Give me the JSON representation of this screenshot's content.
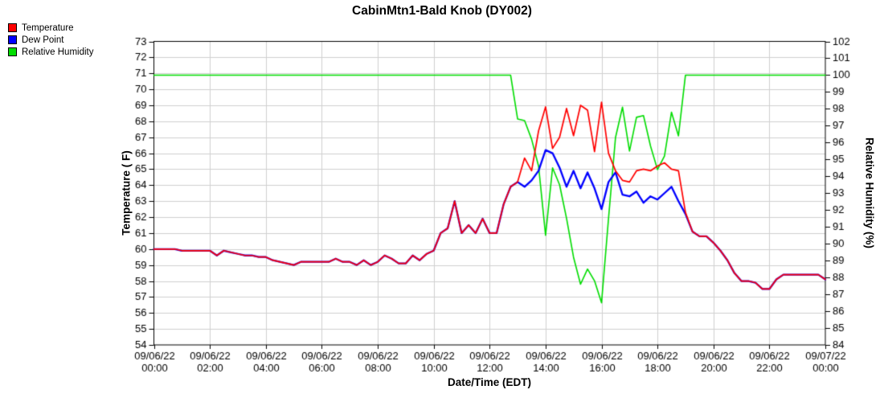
{
  "window": {
    "title": "CabinMtn1-Bald Knob (DY002)"
  },
  "legend": {
    "items": [
      {
        "label": "Temperature",
        "color": "#ff0000"
      },
      {
        "label": "Dew Point",
        "color": "#0000ff"
      },
      {
        "label": "Relative Humidity",
        "color": "#00dd00"
      }
    ]
  },
  "axes": {
    "left_title": "Temperature ( F)",
    "right_title": "Relative Humidity (%)",
    "x_title": "Date/Time (EDT)"
  },
  "chart_data": {
    "type": "line",
    "title": "CabinMtn1-Bald Knob (DY002)",
    "x_start_hour": 0,
    "x_step_hours": 0.25,
    "x_total_hours": 24,
    "x_tick_hours": [
      0,
      2,
      4,
      6,
      8,
      10,
      12,
      14,
      16,
      18,
      20,
      22,
      24
    ],
    "x_ticks": [
      {
        "date": "09/06/22",
        "time": "00:00"
      },
      {
        "date": "09/06/22",
        "time": "02:00"
      },
      {
        "date": "09/06/22",
        "time": "04:00"
      },
      {
        "date": "09/06/22",
        "time": "06:00"
      },
      {
        "date": "09/06/22",
        "time": "08:00"
      },
      {
        "date": "09/06/22",
        "time": "10:00"
      },
      {
        "date": "09/06/22",
        "time": "12:00"
      },
      {
        "date": "09/06/22",
        "time": "14:00"
      },
      {
        "date": "09/06/22",
        "time": "16:00"
      },
      {
        "date": "09/06/22",
        "time": "18:00"
      },
      {
        "date": "09/06/22",
        "time": "20:00"
      },
      {
        "date": "09/06/22",
        "time": "22:00"
      },
      {
        "date": "09/07/22",
        "time": "00:00"
      }
    ],
    "ylim_left_f": [
      54,
      73
    ],
    "ylim_right_pct": [
      84,
      102
    ],
    "y_tick_step": 1,
    "grid": true,
    "grid_color": "#cfcfcf",
    "legend_position": "top-left",
    "series": [
      {
        "name": "Temperature",
        "axis": "left",
        "color": "#ff0000",
        "unit": "F",
        "values": [
          60.0,
          60.0,
          60.0,
          60.0,
          59.9,
          59.9,
          59.9,
          59.9,
          59.9,
          59.6,
          59.9,
          59.8,
          59.7,
          59.6,
          59.6,
          59.5,
          59.5,
          59.3,
          59.2,
          59.1,
          59.0,
          59.2,
          59.2,
          59.2,
          59.2,
          59.2,
          59.4,
          59.2,
          59.2,
          59.0,
          59.3,
          59.0,
          59.2,
          59.6,
          59.4,
          59.1,
          59.1,
          59.6,
          59.3,
          59.7,
          59.9,
          61.0,
          61.3,
          63.0,
          61.0,
          61.5,
          61.0,
          61.9,
          61.0,
          61.0,
          62.8,
          63.9,
          64.2,
          65.7,
          64.9,
          67.4,
          68.9,
          66.3,
          67.0,
          68.8,
          67.1,
          69.0,
          68.7,
          66.1,
          69.2,
          66.0,
          64.9,
          64.3,
          64.2,
          64.9,
          65.0,
          64.9,
          65.2,
          65.4,
          65.0,
          64.9,
          62.3,
          61.1,
          60.8,
          60.8,
          60.4,
          59.9,
          59.3,
          58.5,
          58.0,
          58.0,
          57.9,
          57.5,
          57.5,
          58.1,
          58.4,
          58.4,
          58.4,
          58.4,
          58.4,
          58.4,
          58.1
        ]
      },
      {
        "name": "Dew Point",
        "axis": "left",
        "color": "#0000ff",
        "unit": "F",
        "values": [
          60.0,
          60.0,
          60.0,
          60.0,
          59.9,
          59.9,
          59.9,
          59.9,
          59.9,
          59.6,
          59.9,
          59.8,
          59.7,
          59.6,
          59.6,
          59.5,
          59.5,
          59.3,
          59.2,
          59.1,
          59.0,
          59.2,
          59.2,
          59.2,
          59.2,
          59.2,
          59.4,
          59.2,
          59.2,
          59.0,
          59.3,
          59.0,
          59.2,
          59.6,
          59.4,
          59.1,
          59.1,
          59.6,
          59.3,
          59.7,
          59.9,
          61.0,
          61.3,
          63.0,
          61.0,
          61.5,
          61.0,
          61.9,
          61.0,
          61.0,
          62.8,
          63.9,
          64.2,
          63.9,
          64.3,
          64.9,
          66.2,
          66.0,
          65.1,
          63.9,
          64.9,
          63.8,
          64.8,
          63.8,
          62.5,
          64.2,
          64.8,
          63.4,
          63.3,
          63.6,
          62.9,
          63.3,
          63.1,
          63.5,
          63.9,
          63.0,
          62.2,
          61.1,
          60.8,
          60.8,
          60.4,
          59.9,
          59.3,
          58.5,
          58.0,
          58.0,
          57.9,
          57.5,
          57.5,
          58.1,
          58.4,
          58.4,
          58.4,
          58.4,
          58.4,
          58.4,
          58.1
        ]
      },
      {
        "name": "Relative Humidity",
        "axis": "right",
        "color": "#00dd00",
        "unit": "%",
        "values": [
          100.0,
          100.0,
          100.0,
          100.0,
          100.0,
          100.0,
          100.0,
          100.0,
          100.0,
          100.0,
          100.0,
          100.0,
          100.0,
          100.0,
          100.0,
          100.0,
          100.0,
          100.0,
          100.0,
          100.0,
          100.0,
          100.0,
          100.0,
          100.0,
          100.0,
          100.0,
          100.0,
          100.0,
          100.0,
          100.0,
          100.0,
          100.0,
          100.0,
          100.0,
          100.0,
          100.0,
          100.0,
          100.0,
          100.0,
          100.0,
          100.0,
          100.0,
          100.0,
          100.0,
          100.0,
          100.0,
          100.0,
          100.0,
          100.0,
          100.0,
          100.0,
          100.0,
          97.4,
          97.3,
          96.2,
          94.6,
          90.5,
          94.5,
          93.5,
          91.5,
          89.2,
          87.6,
          88.5,
          87.8,
          86.5,
          91.5,
          96.3,
          98.1,
          95.5,
          97.5,
          97.6,
          95.8,
          94.4,
          95.2,
          97.8,
          96.4,
          100.0,
          100.0,
          100.0,
          100.0,
          100.0,
          100.0,
          100.0,
          100.0,
          100.0,
          100.0,
          100.0,
          100.0,
          100.0,
          100.0,
          100.0,
          100.0,
          100.0,
          100.0,
          100.0,
          100.0,
          100.0
        ]
      }
    ]
  }
}
